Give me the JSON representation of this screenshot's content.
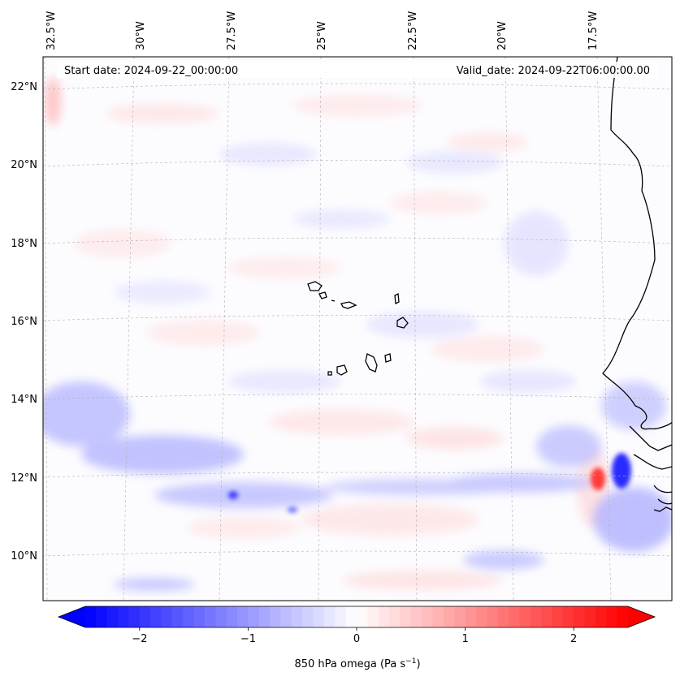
{
  "header": {
    "start_date": "Start date: 2024-09-22_00:00:00",
    "valid_date": "Valid_date: 2024-09-22T06:00:00.00"
  },
  "map": {
    "lon_labels": [
      "32.5°W",
      "30°W",
      "27.5°W",
      "25°W",
      "22.5°W",
      "20°W",
      "17.5°W"
    ],
    "lat_labels": [
      "22°N",
      "20°N",
      "18°N",
      "16°N",
      "14°N",
      "12°N",
      "10°N"
    ]
  },
  "colorbar": {
    "label_prefix": "850 hPa omega (Pa s",
    "label_exp": "−1",
    "label_suffix": ")",
    "ticks": [
      "−2",
      "−1",
      "0",
      "1",
      "2"
    ],
    "tick_values": [
      -2,
      -1,
      0,
      1,
      2
    ],
    "range": [
      -2.5,
      2.5
    ],
    "colors": {
      "min": "#0000ff",
      "mid": "#ffffff",
      "max": "#ff0000"
    }
  }
}
